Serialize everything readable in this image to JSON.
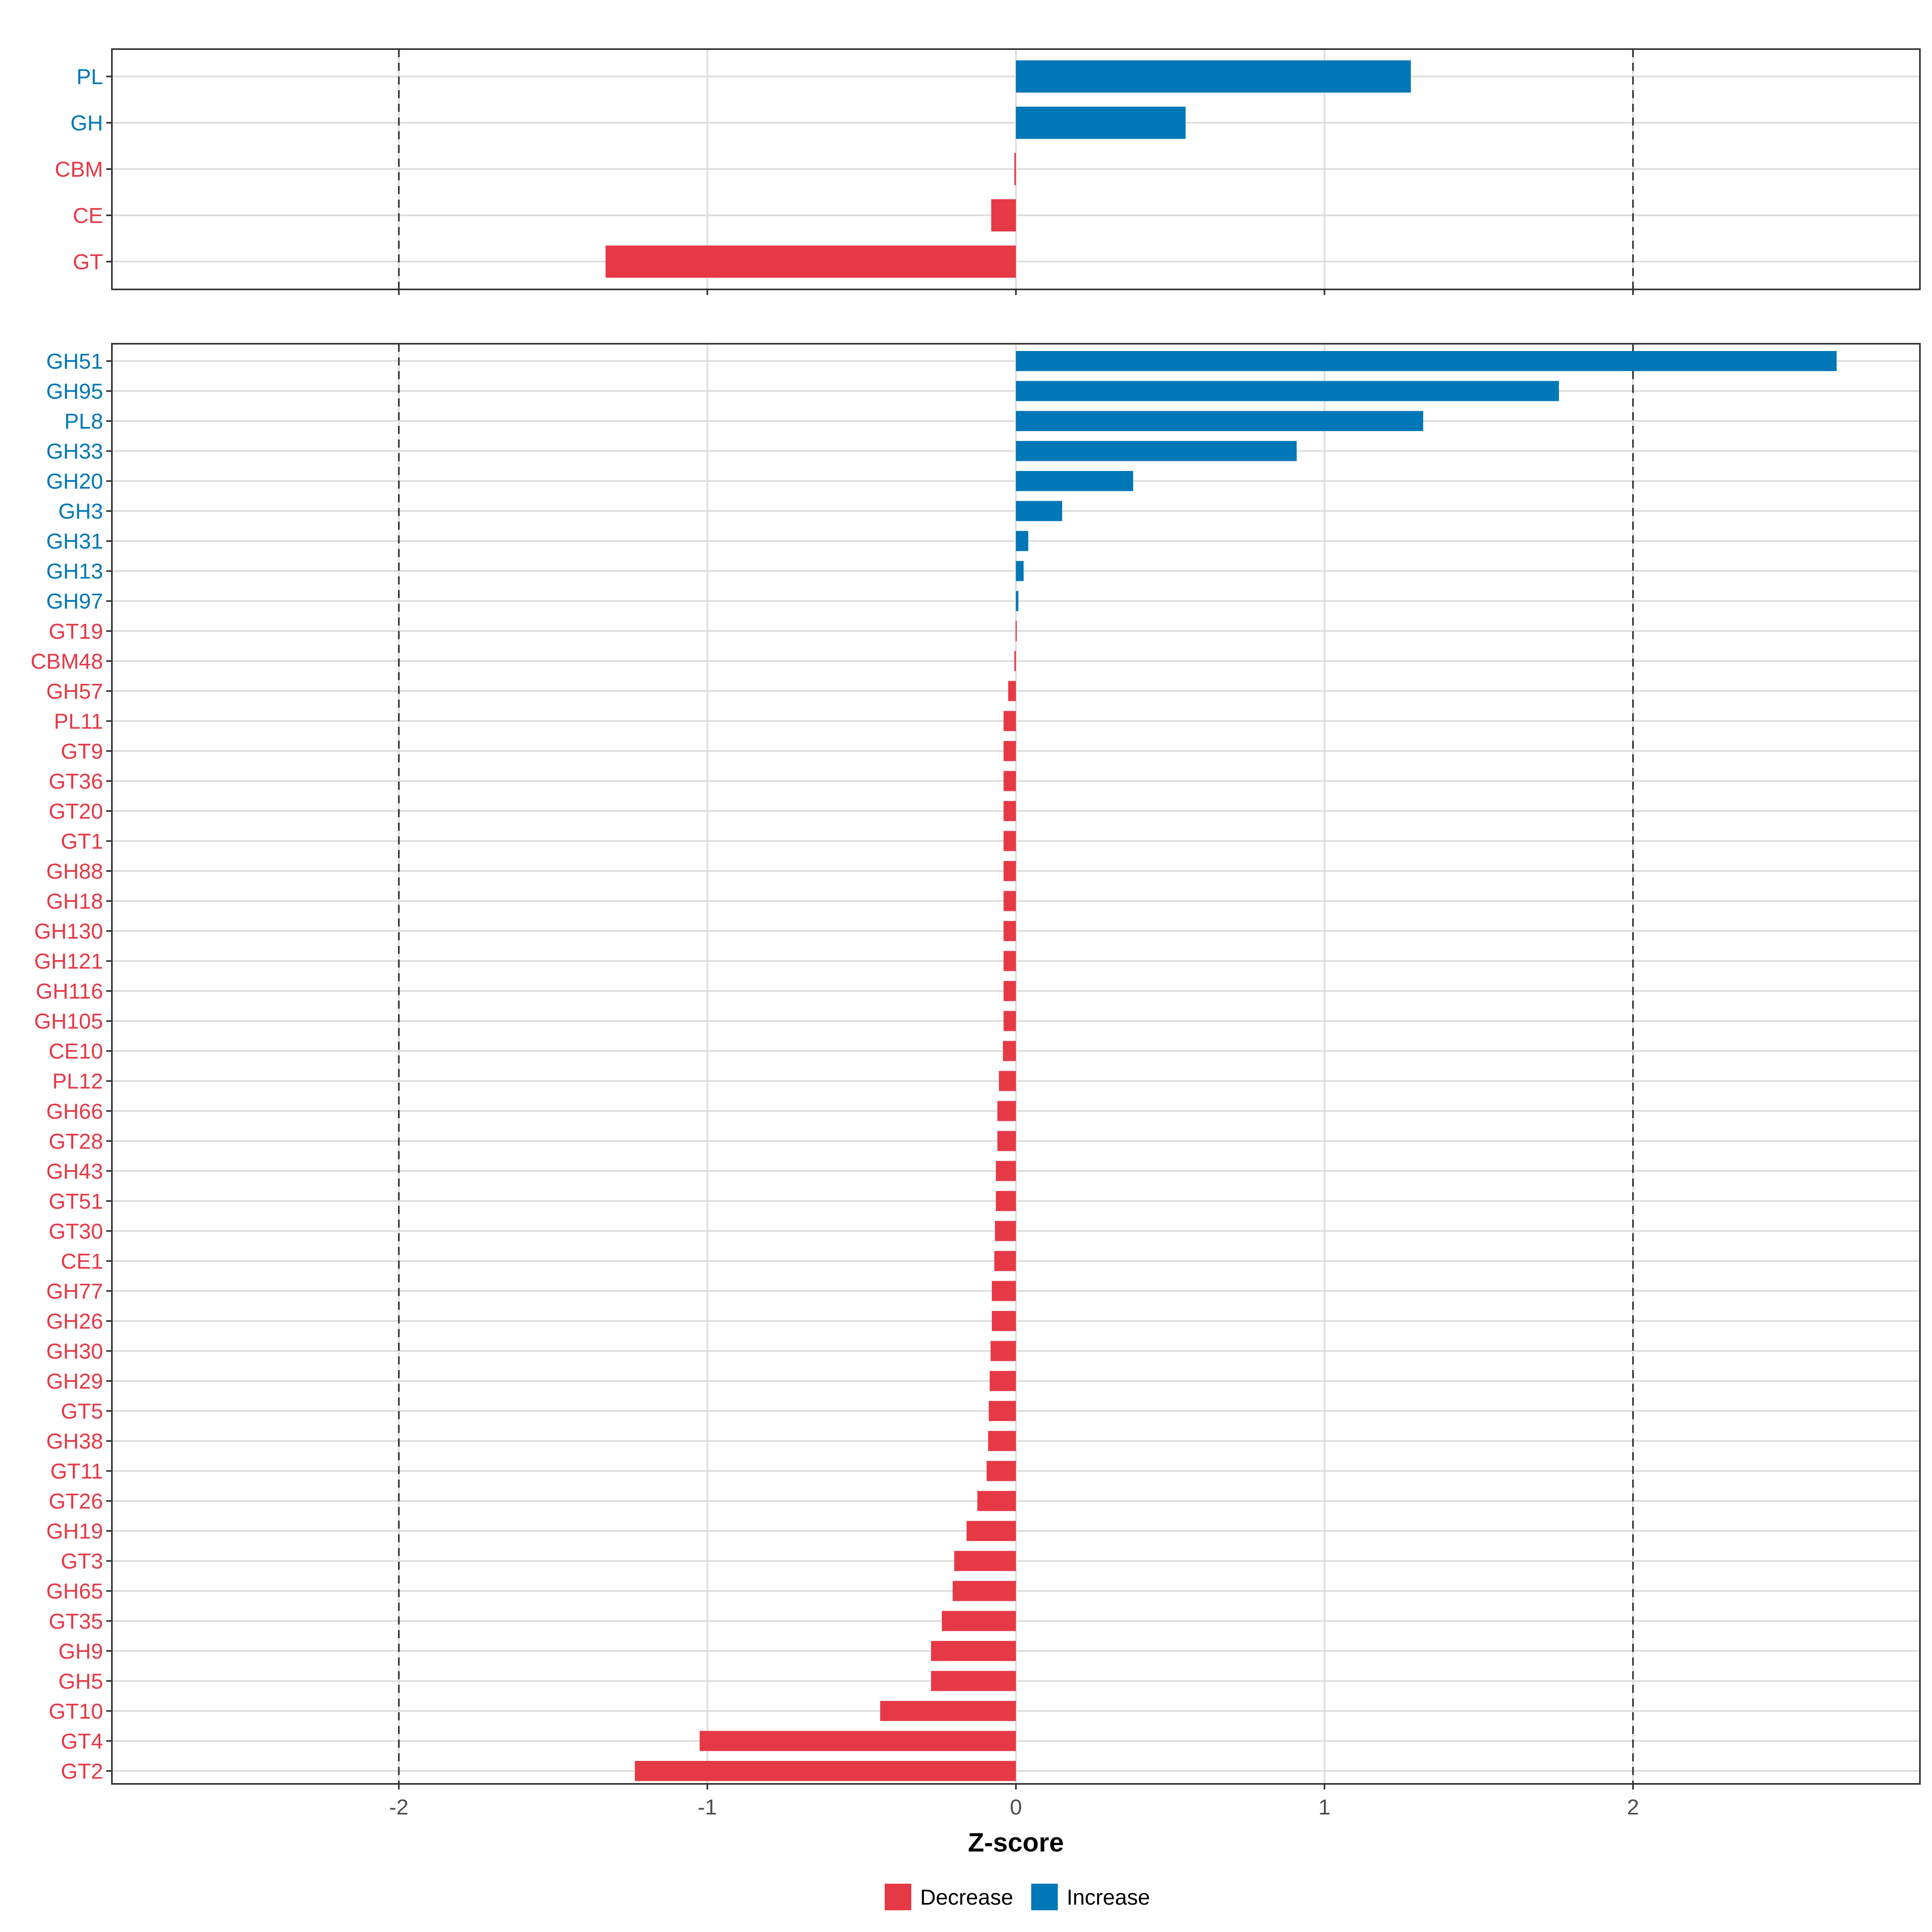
{
  "chart_data": {
    "type": "bar",
    "orientation": "horizontal",
    "xlabel": "Z-score",
    "xlim": [
      -2.93,
      2.93
    ],
    "xticks": [
      -2,
      -1,
      0,
      1,
      2
    ],
    "xtick_labels": [
      "-2",
      "-1",
      "0",
      "1",
      "2"
    ],
    "reference_lines": [
      -2,
      2
    ],
    "grid": true,
    "colors": {
      "Decrease": "#E63946",
      "Increase": "#0077B6"
    },
    "legend": {
      "position": "bottom",
      "entries": [
        "Decrease",
        "Increase"
      ]
    },
    "panels": [
      {
        "name": "families",
        "categories": [
          "PL",
          "GH",
          "CBM",
          "CE",
          "GT"
        ],
        "values": [
          1.28,
          0.55,
          -0.005,
          -0.08,
          -1.33
        ],
        "direction": [
          "Increase",
          "Increase",
          "Decrease",
          "Decrease",
          "Decrease"
        ]
      },
      {
        "name": "subfamilies",
        "categories": [
          "GH51",
          "GH95",
          "PL8",
          "GH33",
          "GH20",
          "GH3",
          "GH31",
          "GH13",
          "GH97",
          "GT19",
          "CBM48",
          "GH57",
          "PL11",
          "GT9",
          "GT36",
          "GT20",
          "GT1",
          "GH88",
          "GH18",
          "GH130",
          "GH121",
          "GH116",
          "GH105",
          "CE10",
          "PL12",
          "GH66",
          "GT28",
          "GH43",
          "GT51",
          "GT30",
          "CE1",
          "GH77",
          "GH26",
          "GH30",
          "GH29",
          "GT5",
          "GH38",
          "GT11",
          "GT26",
          "GH19",
          "GT3",
          "GH65",
          "GT35",
          "GH9",
          "GH5",
          "GT10",
          "GT4",
          "GT2"
        ],
        "values": [
          2.66,
          1.76,
          1.32,
          0.91,
          0.38,
          0.15,
          0.04,
          0.025,
          0.008,
          -0.001,
          -0.005,
          -0.025,
          -0.04,
          -0.04,
          -0.04,
          -0.04,
          -0.04,
          -0.04,
          -0.04,
          -0.04,
          -0.04,
          -0.04,
          -0.04,
          -0.042,
          -0.055,
          -0.06,
          -0.06,
          -0.065,
          -0.065,
          -0.068,
          -0.07,
          -0.078,
          -0.078,
          -0.082,
          -0.085,
          -0.088,
          -0.09,
          -0.095,
          -0.125,
          -0.16,
          -0.2,
          -0.205,
          -0.24,
          -0.275,
          -0.275,
          -0.44,
          -1.025,
          -1.235
        ],
        "direction": [
          "Increase",
          "Increase",
          "Increase",
          "Increase",
          "Increase",
          "Increase",
          "Increase",
          "Increase",
          "Increase",
          "Decrease",
          "Decrease",
          "Decrease",
          "Decrease",
          "Decrease",
          "Decrease",
          "Decrease",
          "Decrease",
          "Decrease",
          "Decrease",
          "Decrease",
          "Decrease",
          "Decrease",
          "Decrease",
          "Decrease",
          "Decrease",
          "Decrease",
          "Decrease",
          "Decrease",
          "Decrease",
          "Decrease",
          "Decrease",
          "Decrease",
          "Decrease",
          "Decrease",
          "Decrease",
          "Decrease",
          "Decrease",
          "Decrease",
          "Decrease",
          "Decrease",
          "Decrease",
          "Decrease",
          "Decrease",
          "Decrease",
          "Decrease",
          "Decrease",
          "Decrease",
          "Decrease"
        ]
      }
    ]
  }
}
